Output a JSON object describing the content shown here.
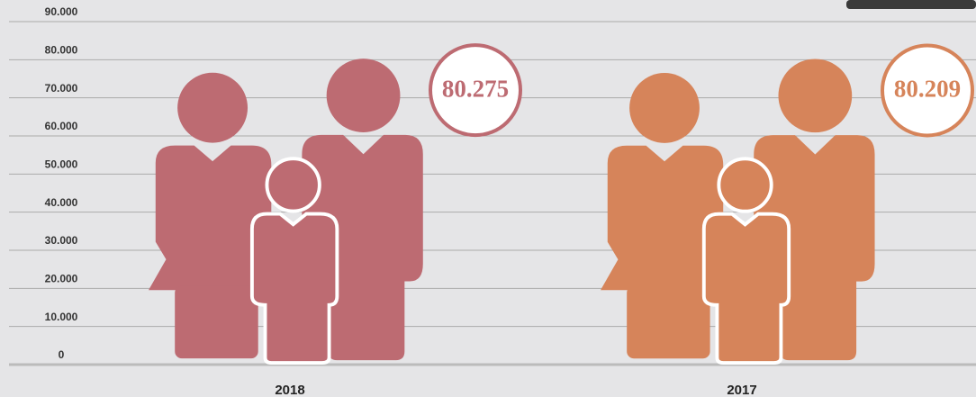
{
  "chart_data": {
    "type": "pictograph",
    "categories": [
      "2018",
      "2017"
    ],
    "values": [
      80275,
      80209
    ],
    "value_labels": [
      "80.275",
      "80.209"
    ],
    "colors": [
      "#bd6b72",
      "#d6845a"
    ],
    "ylim": [
      0,
      90000
    ],
    "yticks": [
      0,
      {
        "value": 10000,
        "label": "10.000"
      },
      {
        "value": 20000,
        "label": "20.000"
      },
      {
        "value": 30000,
        "label": "30.000"
      },
      {
        "value": 40000,
        "label": "40.000"
      },
      {
        "value": 50000,
        "label": "50.000"
      },
      {
        "value": 60000,
        "label": "60.000"
      },
      {
        "value": 70000,
        "label": "70.000"
      },
      {
        "value": 80000,
        "label": "80.000"
      },
      {
        "value": 90000,
        "label": "90.000"
      }
    ],
    "grid": true
  }
}
